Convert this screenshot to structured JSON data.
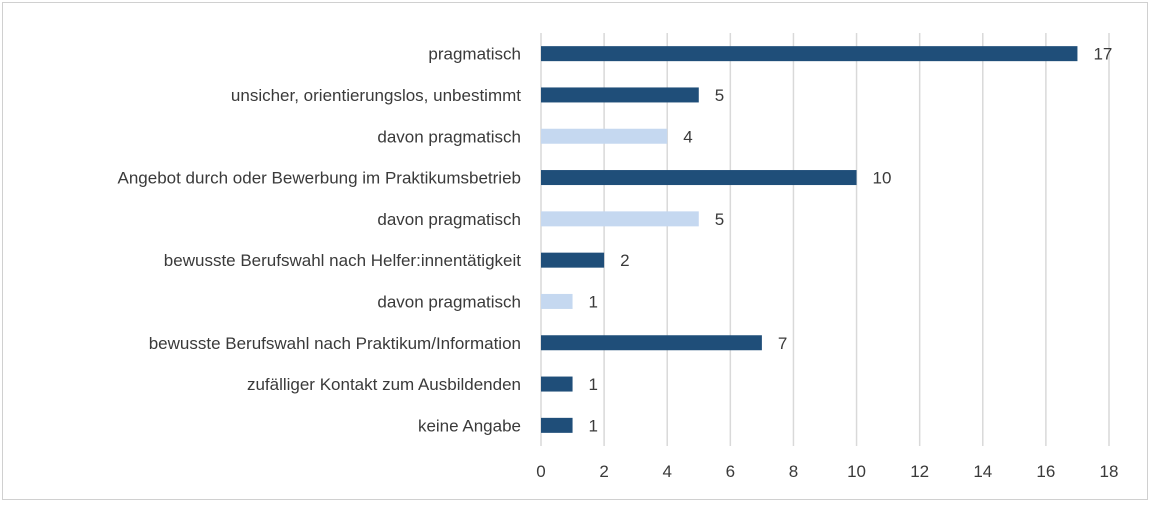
{
  "chart_data": {
    "type": "bar",
    "orientation": "horizontal",
    "categories": [
      "pragmatisch",
      "unsicher, orientierungslos, unbestimmt",
      "davon pragmatisch",
      "Angebot durch oder Bewerbung im Praktikumsbetrieb",
      "davon pragmatisch",
      "bewusste Berufswahl nach Helfer:innentätigkeit",
      "davon pragmatisch",
      "bewusste Berufswahl nach Praktikum/Information",
      "zufälliger Kontakt zum Ausbildenden",
      "keine Angabe"
    ],
    "values": [
      17,
      5,
      4,
      10,
      5,
      2,
      1,
      7,
      1,
      1
    ],
    "bar_colors": [
      "#1f4e79",
      "#1f4e79",
      "#c5d8f0",
      "#1f4e79",
      "#c5d8f0",
      "#1f4e79",
      "#c5d8f0",
      "#1f4e79",
      "#1f4e79",
      "#1f4e79"
    ],
    "xlim": [
      0,
      18
    ],
    "x_ticks": [
      "0",
      "2",
      "4",
      "6",
      "8",
      "10",
      "12",
      "14",
      "16",
      "18"
    ],
    "grid": true,
    "data_labels": true,
    "title": "",
    "xlabel": "",
    "ylabel": ""
  }
}
